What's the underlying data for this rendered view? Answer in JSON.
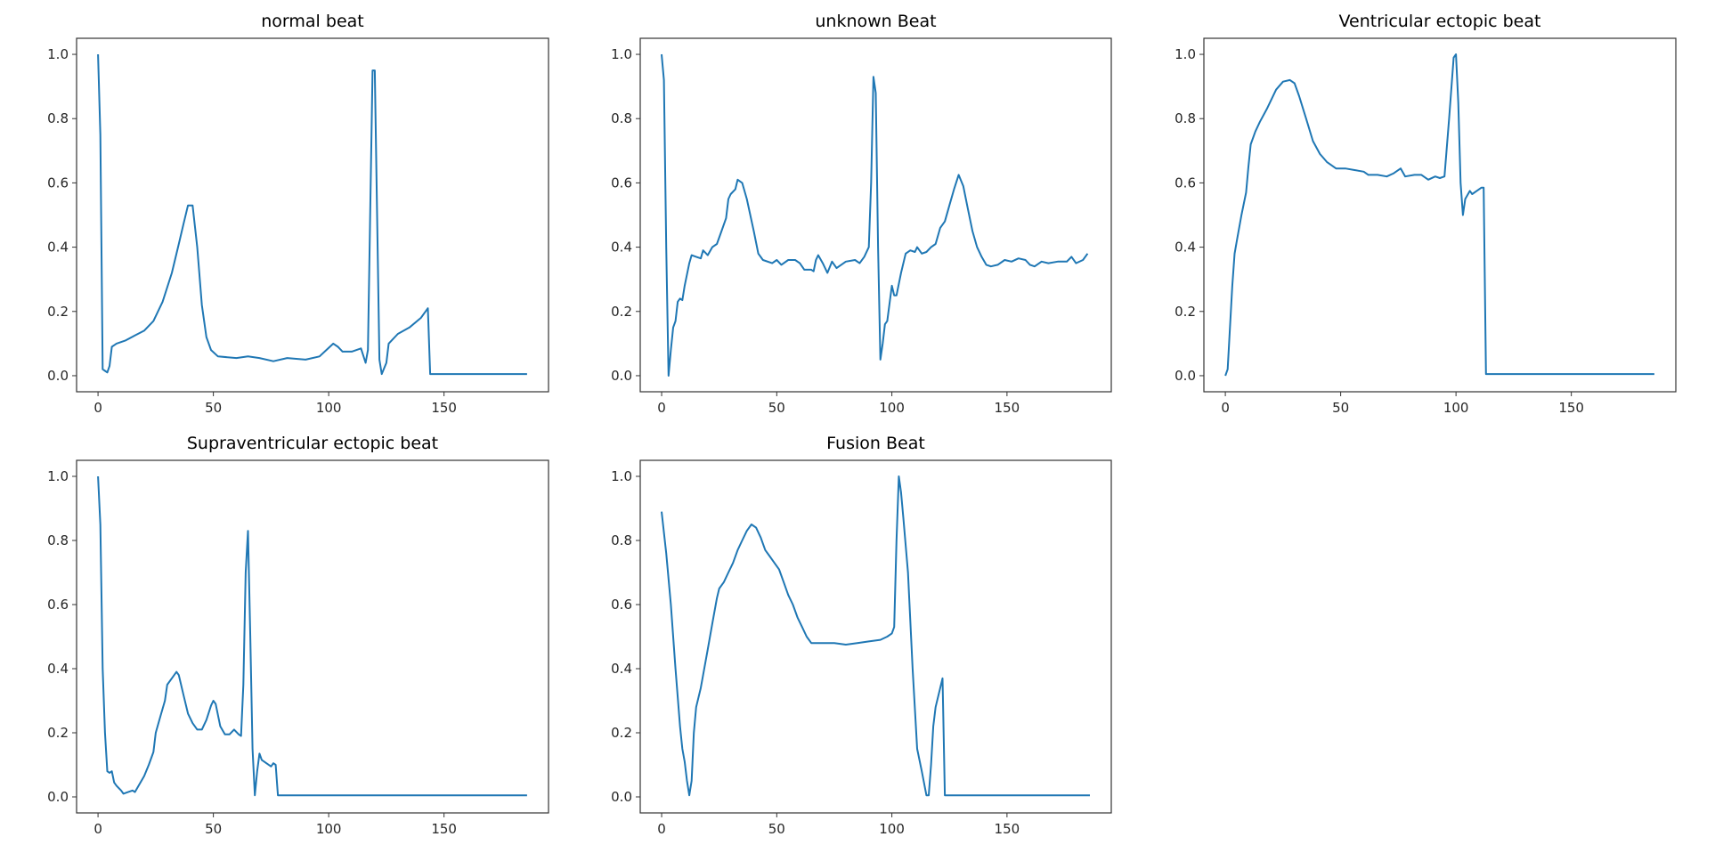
{
  "line_color": "#1f77b4",
  "chart_data": [
    {
      "type": "line",
      "title": "normal beat",
      "xlim": [
        -9.3,
        195.3
      ],
      "ylim": [
        -0.05,
        1.05
      ],
      "xticks": [
        0,
        50,
        100,
        150
      ],
      "yticks": [
        "0.0",
        "0.2",
        "0.4",
        "0.6",
        "0.8",
        "1.0"
      ],
      "grid": false,
      "points": [
        [
          0,
          1.0
        ],
        [
          1,
          0.75
        ],
        [
          2,
          0.02
        ],
        [
          3,
          0.015
        ],
        [
          4,
          0.01
        ],
        [
          5,
          0.03
        ],
        [
          6,
          0.09
        ],
        [
          8,
          0.1
        ],
        [
          12,
          0.11
        ],
        [
          16,
          0.125
        ],
        [
          20,
          0.14
        ],
        [
          24,
          0.17
        ],
        [
          28,
          0.23
        ],
        [
          32,
          0.32
        ],
        [
          35,
          0.41
        ],
        [
          37,
          0.47
        ],
        [
          39,
          0.53
        ],
        [
          41,
          0.53
        ],
        [
          43,
          0.4
        ],
        [
          45,
          0.22
        ],
        [
          47,
          0.12
        ],
        [
          49,
          0.08
        ],
        [
          52,
          0.06
        ],
        [
          60,
          0.055
        ],
        [
          65,
          0.06
        ],
        [
          70,
          0.055
        ],
        [
          76,
          0.045
        ],
        [
          82,
          0.055
        ],
        [
          90,
          0.05
        ],
        [
          96,
          0.06
        ],
        [
          99,
          0.08
        ],
        [
          102,
          0.1
        ],
        [
          104,
          0.09
        ],
        [
          106,
          0.075
        ],
        [
          110,
          0.075
        ],
        [
          114,
          0.085
        ],
        [
          116,
          0.04
        ],
        [
          117,
          0.08
        ],
        [
          119,
          0.95
        ],
        [
          120,
          0.95
        ],
        [
          121,
          0.5
        ],
        [
          122,
          0.05
        ],
        [
          123,
          0.005
        ],
        [
          125,
          0.04
        ],
        [
          126,
          0.1
        ],
        [
          130,
          0.13
        ],
        [
          135,
          0.15
        ],
        [
          140,
          0.18
        ],
        [
          142,
          0.2
        ],
        [
          143,
          0.21
        ],
        [
          144,
          0.005
        ],
        [
          186,
          0.005
        ]
      ]
    },
    {
      "type": "line",
      "title": "unknown Beat",
      "xlim": [
        -9.3,
        195.3
      ],
      "ylim": [
        -0.05,
        1.05
      ],
      "xticks": [
        0,
        50,
        100,
        150
      ],
      "yticks": [
        "0.0",
        "0.2",
        "0.4",
        "0.6",
        "0.8",
        "1.0"
      ],
      "grid": false,
      "points": [
        [
          0,
          1.0
        ],
        [
          1,
          0.92
        ],
        [
          2,
          0.4
        ],
        [
          3,
          0.0
        ],
        [
          4,
          0.08
        ],
        [
          5,
          0.15
        ],
        [
          6,
          0.17
        ],
        [
          7,
          0.23
        ],
        [
          8,
          0.24
        ],
        [
          9,
          0.235
        ],
        [
          10,
          0.28
        ],
        [
          12,
          0.35
        ],
        [
          13,
          0.375
        ],
        [
          15,
          0.37
        ],
        [
          17,
          0.365
        ],
        [
          18,
          0.39
        ],
        [
          20,
          0.375
        ],
        [
          22,
          0.4
        ],
        [
          24,
          0.41
        ],
        [
          26,
          0.45
        ],
        [
          28,
          0.49
        ],
        [
          29,
          0.55
        ],
        [
          30,
          0.565
        ],
        [
          32,
          0.58
        ],
        [
          33,
          0.61
        ],
        [
          35,
          0.6
        ],
        [
          37,
          0.55
        ],
        [
          40,
          0.45
        ],
        [
          42,
          0.38
        ],
        [
          44,
          0.36
        ],
        [
          48,
          0.35
        ],
        [
          50,
          0.36
        ],
        [
          52,
          0.345
        ],
        [
          55,
          0.36
        ],
        [
          58,
          0.36
        ],
        [
          60,
          0.35
        ],
        [
          62,
          0.33
        ],
        [
          65,
          0.33
        ],
        [
          66,
          0.325
        ],
        [
          67,
          0.36
        ],
        [
          68,
          0.375
        ],
        [
          70,
          0.35
        ],
        [
          72,
          0.32
        ],
        [
          74,
          0.355
        ],
        [
          76,
          0.335
        ],
        [
          80,
          0.355
        ],
        [
          84,
          0.36
        ],
        [
          86,
          0.35
        ],
        [
          88,
          0.37
        ],
        [
          90,
          0.4
        ],
        [
          91,
          0.6
        ],
        [
          92,
          0.93
        ],
        [
          93,
          0.88
        ],
        [
          94,
          0.4
        ],
        [
          95,
          0.05
        ],
        [
          96,
          0.1
        ],
        [
          97,
          0.16
        ],
        [
          98,
          0.17
        ],
        [
          100,
          0.28
        ],
        [
          101,
          0.25
        ],
        [
          102,
          0.25
        ],
        [
          104,
          0.32
        ],
        [
          106,
          0.38
        ],
        [
          108,
          0.39
        ],
        [
          110,
          0.385
        ],
        [
          111,
          0.4
        ],
        [
          113,
          0.38
        ],
        [
          115,
          0.385
        ],
        [
          117,
          0.4
        ],
        [
          119,
          0.41
        ],
        [
          121,
          0.46
        ],
        [
          123,
          0.48
        ],
        [
          125,
          0.53
        ],
        [
          127,
          0.58
        ],
        [
          129,
          0.625
        ],
        [
          131,
          0.59
        ],
        [
          133,
          0.52
        ],
        [
          135,
          0.45
        ],
        [
          137,
          0.4
        ],
        [
          139,
          0.37
        ],
        [
          141,
          0.345
        ],
        [
          143,
          0.34
        ],
        [
          146,
          0.345
        ],
        [
          149,
          0.36
        ],
        [
          152,
          0.355
        ],
        [
          155,
          0.365
        ],
        [
          158,
          0.36
        ],
        [
          160,
          0.345
        ],
        [
          162,
          0.34
        ],
        [
          165,
          0.355
        ],
        [
          168,
          0.35
        ],
        [
          172,
          0.355
        ],
        [
          176,
          0.355
        ],
        [
          178,
          0.37
        ],
        [
          180,
          0.35
        ],
        [
          183,
          0.36
        ],
        [
          185,
          0.38
        ]
      ]
    },
    {
      "type": "line",
      "title": "Ventricular ectopic beat",
      "xlim": [
        -9.3,
        195.3
      ],
      "ylim": [
        -0.05,
        1.05
      ],
      "xticks": [
        0,
        50,
        100,
        150
      ],
      "yticks": [
        "0.0",
        "0.2",
        "0.4",
        "0.6",
        "0.8",
        "1.0"
      ],
      "grid": false,
      "points": [
        [
          0,
          0
        ],
        [
          1,
          0.02
        ],
        [
          2,
          0.15
        ],
        [
          3,
          0.28
        ],
        [
          4,
          0.38
        ],
        [
          5,
          0.42
        ],
        [
          7,
          0.5
        ],
        [
          9,
          0.57
        ],
        [
          10,
          0.65
        ],
        [
          11,
          0.72
        ],
        [
          13,
          0.76
        ],
        [
          15,
          0.79
        ],
        [
          18,
          0.83
        ],
        [
          20,
          0.86
        ],
        [
          22,
          0.89
        ],
        [
          25,
          0.915
        ],
        [
          28,
          0.92
        ],
        [
          30,
          0.91
        ],
        [
          32,
          0.87
        ],
        [
          35,
          0.8
        ],
        [
          38,
          0.73
        ],
        [
          41,
          0.69
        ],
        [
          44,
          0.665
        ],
        [
          48,
          0.645
        ],
        [
          52,
          0.645
        ],
        [
          56,
          0.64
        ],
        [
          60,
          0.635
        ],
        [
          62,
          0.625
        ],
        [
          66,
          0.625
        ],
        [
          70,
          0.62
        ],
        [
          73,
          0.63
        ],
        [
          76,
          0.645
        ],
        [
          78,
          0.62
        ],
        [
          82,
          0.625
        ],
        [
          85,
          0.625
        ],
        [
          88,
          0.61
        ],
        [
          91,
          0.62
        ],
        [
          93,
          0.615
        ],
        [
          95,
          0.62
        ],
        [
          97,
          0.8
        ],
        [
          99,
          0.99
        ],
        [
          100,
          1.0
        ],
        [
          101,
          0.85
        ],
        [
          102,
          0.6
        ],
        [
          103,
          0.5
        ],
        [
          104,
          0.55
        ],
        [
          106,
          0.575
        ],
        [
          107,
          0.565
        ],
        [
          109,
          0.575
        ],
        [
          111,
          0.585
        ],
        [
          112,
          0.585
        ],
        [
          113,
          0.005
        ],
        [
          186,
          0.005
        ]
      ]
    },
    {
      "type": "line",
      "title": "Supraventricular ectopic beat",
      "xlim": [
        -9.3,
        195.3
      ],
      "ylim": [
        -0.05,
        1.05
      ],
      "xticks": [
        0,
        50,
        100,
        150
      ],
      "yticks": [
        "0.0",
        "0.2",
        "0.4",
        "0.6",
        "0.8",
        "1.0"
      ],
      "grid": false,
      "points": [
        [
          0,
          1.0
        ],
        [
          1,
          0.85
        ],
        [
          2,
          0.4
        ],
        [
          3,
          0.2
        ],
        [
          4,
          0.08
        ],
        [
          5,
          0.075
        ],
        [
          6,
          0.08
        ],
        [
          7,
          0.045
        ],
        [
          8,
          0.035
        ],
        [
          10,
          0.02
        ],
        [
          11,
          0.01
        ],
        [
          13,
          0.015
        ],
        [
          15,
          0.02
        ],
        [
          16,
          0.015
        ],
        [
          18,
          0.04
        ],
        [
          20,
          0.065
        ],
        [
          22,
          0.1
        ],
        [
          24,
          0.14
        ],
        [
          25,
          0.2
        ],
        [
          27,
          0.25
        ],
        [
          29,
          0.3
        ],
        [
          30,
          0.35
        ],
        [
          32,
          0.37
        ],
        [
          34,
          0.39
        ],
        [
          35,
          0.38
        ],
        [
          37,
          0.32
        ],
        [
          39,
          0.26
        ],
        [
          41,
          0.23
        ],
        [
          43,
          0.21
        ],
        [
          45,
          0.21
        ],
        [
          47,
          0.24
        ],
        [
          49,
          0.285
        ],
        [
          50,
          0.3
        ],
        [
          51,
          0.29
        ],
        [
          53,
          0.22
        ],
        [
          55,
          0.195
        ],
        [
          57,
          0.195
        ],
        [
          59,
          0.21
        ],
        [
          61,
          0.195
        ],
        [
          62,
          0.19
        ],
        [
          63,
          0.35
        ],
        [
          64,
          0.7
        ],
        [
          65,
          0.83
        ],
        [
          66,
          0.5
        ],
        [
          67,
          0.15
        ],
        [
          68,
          0.005
        ],
        [
          69,
          0.08
        ],
        [
          70,
          0.135
        ],
        [
          71,
          0.115
        ],
        [
          73,
          0.105
        ],
        [
          75,
          0.095
        ],
        [
          76,
          0.105
        ],
        [
          77,
          0.1
        ],
        [
          78,
          0.005
        ],
        [
          186,
          0.005
        ]
      ]
    },
    {
      "type": "line",
      "title": "Fusion Beat",
      "xlim": [
        -9.3,
        195.3
      ],
      "ylim": [
        -0.05,
        1.05
      ],
      "xticks": [
        0,
        50,
        100,
        150
      ],
      "yticks": [
        "0.0",
        "0.2",
        "0.4",
        "0.6",
        "0.8",
        "1.0"
      ],
      "grid": false,
      "points": [
        [
          0,
          0.89
        ],
        [
          2,
          0.76
        ],
        [
          4,
          0.6
        ],
        [
          6,
          0.4
        ],
        [
          8,
          0.22
        ],
        [
          9,
          0.15
        ],
        [
          10,
          0.11
        ],
        [
          11,
          0.05
        ],
        [
          12,
          0.005
        ],
        [
          13,
          0.05
        ],
        [
          14,
          0.2
        ],
        [
          15,
          0.28
        ],
        [
          17,
          0.34
        ],
        [
          18,
          0.38
        ],
        [
          20,
          0.46
        ],
        [
          22,
          0.54
        ],
        [
          24,
          0.62
        ],
        [
          25,
          0.65
        ],
        [
          27,
          0.67
        ],
        [
          29,
          0.7
        ],
        [
          31,
          0.73
        ],
        [
          33,
          0.77
        ],
        [
          35,
          0.8
        ],
        [
          37,
          0.83
        ],
        [
          39,
          0.85
        ],
        [
          41,
          0.84
        ],
        [
          43,
          0.81
        ],
        [
          45,
          0.77
        ],
        [
          47,
          0.75
        ],
        [
          49,
          0.73
        ],
        [
          51,
          0.71
        ],
        [
          53,
          0.67
        ],
        [
          55,
          0.63
        ],
        [
          57,
          0.6
        ],
        [
          59,
          0.56
        ],
        [
          61,
          0.53
        ],
        [
          63,
          0.5
        ],
        [
          65,
          0.48
        ],
        [
          70,
          0.48
        ],
        [
          75,
          0.48
        ],
        [
          80,
          0.475
        ],
        [
          85,
          0.48
        ],
        [
          90,
          0.485
        ],
        [
          95,
          0.49
        ],
        [
          98,
          0.5
        ],
        [
          100,
          0.51
        ],
        [
          101,
          0.53
        ],
        [
          102,
          0.8
        ],
        [
          103,
          1.0
        ],
        [
          104,
          0.95
        ],
        [
          105,
          0.87
        ],
        [
          107,
          0.7
        ],
        [
          109,
          0.4
        ],
        [
          111,
          0.15
        ],
        [
          113,
          0.08
        ],
        [
          115,
          0.005
        ],
        [
          116,
          0.005
        ],
        [
          117,
          0.1
        ],
        [
          118,
          0.22
        ],
        [
          119,
          0.28
        ],
        [
          121,
          0.34
        ],
        [
          122,
          0.37
        ],
        [
          123,
          0.005
        ],
        [
          124,
          0.005
        ],
        [
          186,
          0.005
        ]
      ]
    }
  ]
}
